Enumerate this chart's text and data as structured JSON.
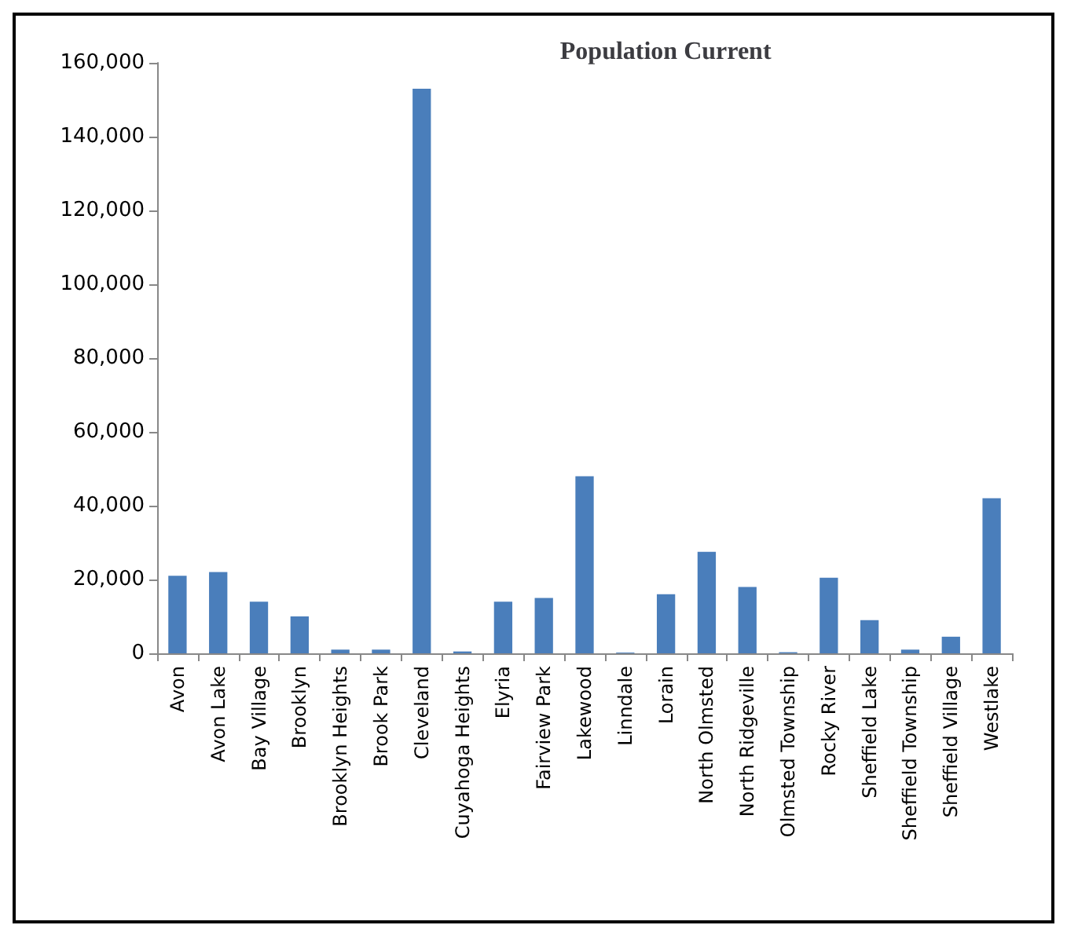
{
  "chart_data": {
    "type": "bar",
    "title": "Population Current",
    "categories": [
      "Avon",
      "Avon Lake",
      "Bay Village",
      "Brooklyn",
      "Brooklyn Heights",
      "Brook Park",
      "Cleveland",
      "Cuyahoga Heights",
      "Elyria",
      "Fairview Park",
      "Lakewood",
      "Linndale",
      "Lorain",
      "North Olmsted",
      "North Ridgeville",
      "Olmsted Township",
      "Rocky River",
      "Sheffield Lake",
      "Sheffield Township",
      "Sheffield Village",
      "Westlake"
    ],
    "values": [
      21000,
      22000,
      14000,
      10000,
      1000,
      1000,
      153000,
      500,
      14000,
      15000,
      48000,
      200,
      16000,
      27500,
      18000,
      300,
      20500,
      9000,
      1000,
      4500,
      42000
    ],
    "color": "#4a7ebb",
    "ylim": [
      0,
      160000
    ],
    "yticks": [
      0,
      {
        "value": 20000,
        "label": "20,000"
      },
      {
        "value": 40000,
        "label": "40,000"
      },
      {
        "value": 60000,
        "label": "60,000"
      },
      {
        "value": 80000,
        "label": "80,000"
      },
      {
        "value": 100000,
        "label": "100,000"
      },
      {
        "value": 120000,
        "label": "120,000"
      },
      {
        "value": 140000,
        "label": "140,000"
      },
      {
        "value": 160000,
        "label": "160,000"
      }
    ],
    "grid": false
  }
}
